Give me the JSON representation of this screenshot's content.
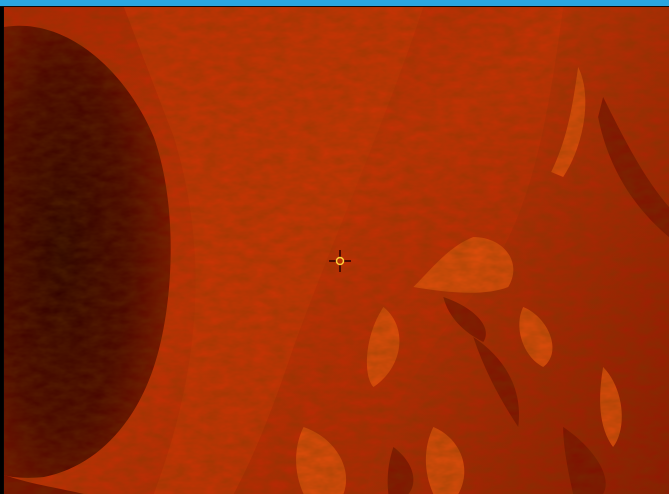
{
  "colors": {
    "top_bar": "#2aa6e0",
    "surface_base": "#c42a05",
    "surface_bright": "#e24a0c",
    "surface_shadow": "#5a0600",
    "dark_region": "#3a0000",
    "crosshair_ring": "#ffd23a",
    "crosshair_lines": "#2a0000"
  },
  "icons": {
    "crosshair": "crosshair-icon"
  }
}
